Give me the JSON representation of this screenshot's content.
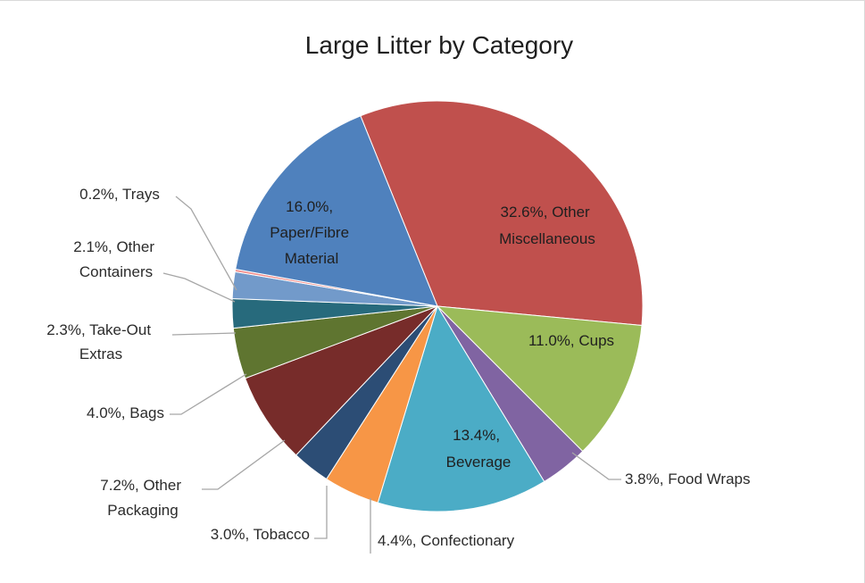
{
  "chart_data": {
    "type": "pie",
    "title": "Large Litter by Category",
    "slices": [
      {
        "label": "Other Miscellaneous",
        "value": 32.6,
        "text": "32.6%, Other Miscellaneous",
        "color": "#C0504D"
      },
      {
        "label": "Cups",
        "value": 11.0,
        "text": "11.0%, Cups",
        "color": "#9BBB59"
      },
      {
        "label": "Food Wraps",
        "value": 3.8,
        "text": "3.8%, Food Wraps",
        "color": "#8064A2"
      },
      {
        "label": "Beverage",
        "value": 13.4,
        "text": "13.4%, Beverage",
        "color": "#4BACC6"
      },
      {
        "label": "Confectionary",
        "value": 4.4,
        "text": "4.4%, Confectionary",
        "color": "#F79646"
      },
      {
        "label": "Tobacco",
        "value": 3.0,
        "text": "3.0%, Tobacco",
        "color": "#2C4D75"
      },
      {
        "label": "Other Packaging",
        "value": 7.2,
        "text": "7.2%, Other Packaging",
        "color": "#772C2A"
      },
      {
        "label": "Bags",
        "value": 4.0,
        "text": "4.0%, Bags",
        "color": "#5F7530"
      },
      {
        "label": "Take-Out Extras",
        "value": 2.3,
        "text": "2.3%, Take-Out Extras",
        "color": "#276A7C"
      },
      {
        "label": "Other Containers",
        "value": 2.1,
        "text": "2.1%, Other Containers",
        "color": "#729ACA"
      },
      {
        "label": "Trays",
        "value": 0.2,
        "text": "0.2%, Trays",
        "color": "#F28E8C"
      },
      {
        "label": "Paper/Fibre Material",
        "value": 16.0,
        "text": "16.0%, Paper/Fibre Material",
        "color": "#4F81BD"
      }
    ]
  },
  "labels": {
    "other_misc": [
      "32.6%, Other",
      "Miscellaneous"
    ],
    "cups": [
      "11.0%, Cups"
    ],
    "food_wraps": [
      "3.8%, Food Wraps"
    ],
    "beverage": [
      "13.4%,",
      "Beverage"
    ],
    "confectionary": [
      "4.4%, Confectionary"
    ],
    "tobacco": [
      "3.0%, Tobacco"
    ],
    "other_packaging": [
      "7.2%, Other",
      "Packaging"
    ],
    "bags": [
      "4.0%, Bags"
    ],
    "takeout": [
      "2.3%, Take-Out",
      "Extras"
    ],
    "other_containers": [
      "2.1%, Other",
      "Containers"
    ],
    "trays": [
      "0.2%, Trays"
    ],
    "paper": [
      "16.0%,",
      "Paper/Fibre",
      "Material"
    ]
  }
}
